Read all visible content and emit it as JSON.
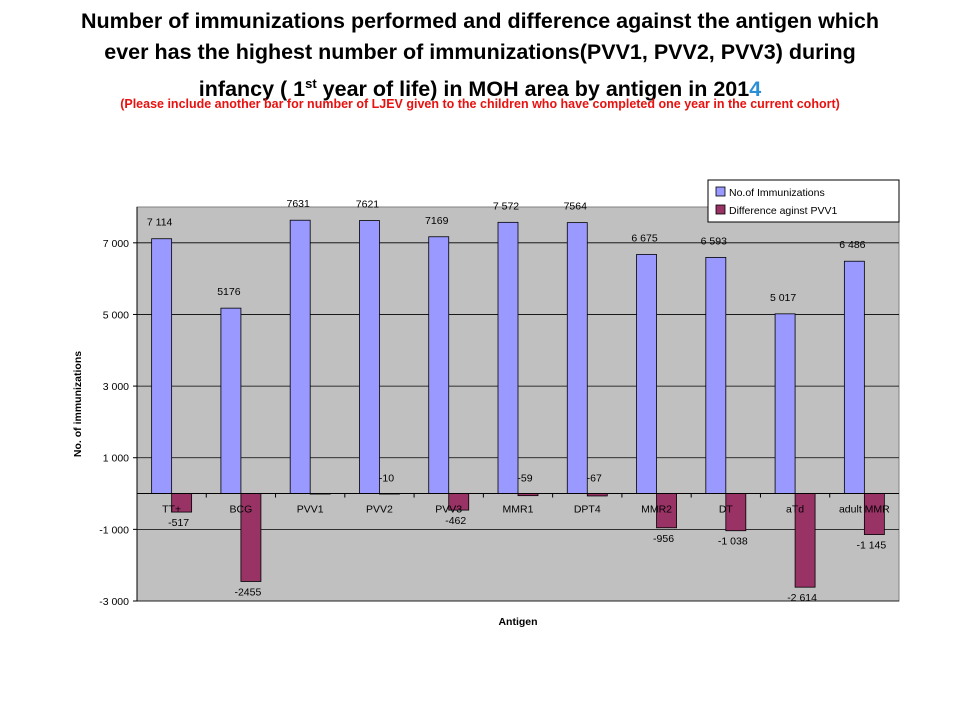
{
  "title": {
    "line1": "Number of immunizations performed and difference against  the antigen which",
    "line2": "ever has the highest number of  immunizations(PVV1, PVV2, PVV3) during",
    "line3_pre": "infancy ( 1",
    "line3_sup": "st",
    "line3_mid": " year of life) in MOH area by antigen in 201",
    "line3_hl": "4"
  },
  "note": "(Please   include another bar for number of LJEV   given to the children who have completed   one year  in the current cohort)",
  "chart_data": {
    "type": "bar",
    "xlabel": "Antigen",
    "ylabel": "No. of immunizations",
    "ylim": [
      -3000,
      8000
    ],
    "yticks": [
      -3000,
      -1000,
      1000,
      3000,
      5000,
      7000
    ],
    "ytick_labels": [
      "-3 000",
      "-1 000",
      "1 000",
      "3 000",
      "5 000",
      "7 000"
    ],
    "grid": true,
    "legend_position": "top-right",
    "categories": [
      "TT+",
      "BCG",
      "PVV1",
      "PVV2",
      "PVV3",
      "MMR1",
      "DPT4",
      "MMR2",
      "DT",
      "aTd",
      "adult MMR"
    ],
    "series": [
      {
        "name": "No.of Immunizations",
        "color": "#9999ff",
        "values": [
          7114,
          5176,
          7631,
          7621,
          7169,
          7572,
          7564,
          6675,
          6593,
          5017,
          6486
        ],
        "labels": [
          "7 114",
          "5176",
          "7631",
          "7621",
          "7169",
          "7 572",
          "7564",
          "6 675",
          "6 593",
          "5 017",
          "6 486"
        ]
      },
      {
        "name": "Difference aginst PVV1",
        "color": "#993366",
        "values": [
          -517,
          -2455,
          0,
          -10,
          -462,
          -59,
          -67,
          -956,
          -1038,
          -2614,
          -1145
        ],
        "labels": [
          "-517",
          "-2455",
          "",
          "-10",
          "-462",
          "-59",
          "-67",
          "-956",
          "-1 038",
          "-2 614",
          "-1 145"
        ]
      }
    ]
  }
}
